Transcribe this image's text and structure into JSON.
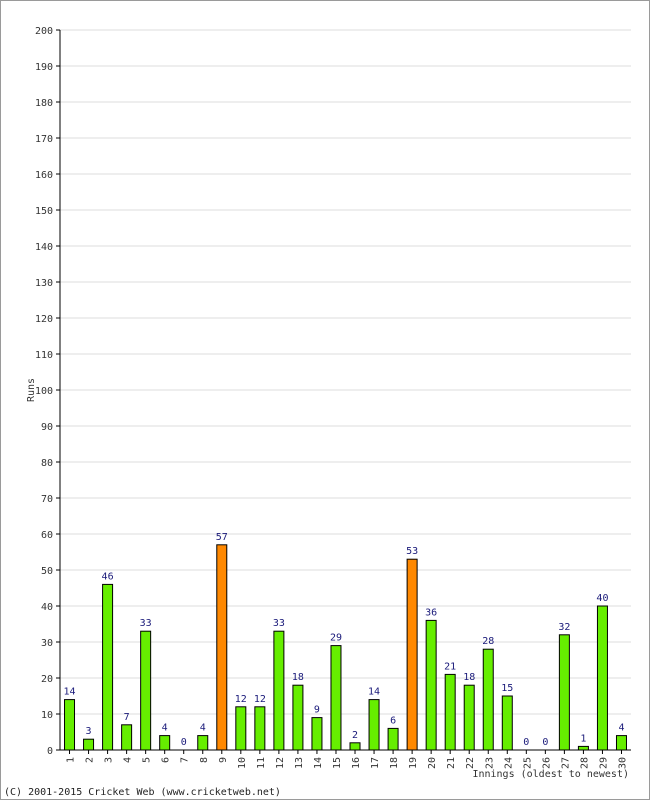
{
  "chart_data": {
    "type": "bar",
    "title": "",
    "xlabel": "Innings (oldest to newest)",
    "ylabel": "Runs",
    "ylim": [
      0,
      200
    ],
    "ytick_step": 10,
    "grid": true,
    "categories": [
      "1",
      "2",
      "3",
      "4",
      "5",
      "6",
      "7",
      "8",
      "9",
      "10",
      "11",
      "12",
      "13",
      "14",
      "15",
      "16",
      "17",
      "18",
      "19",
      "20",
      "21",
      "22",
      "23",
      "24",
      "25",
      "26",
      "27",
      "28",
      "29",
      "30"
    ],
    "values": [
      14,
      3,
      46,
      7,
      33,
      4,
      0,
      4,
      57,
      12,
      12,
      33,
      18,
      9,
      29,
      2,
      14,
      6,
      53,
      36,
      21,
      18,
      28,
      15,
      0,
      0,
      32,
      1,
      40,
      4
    ],
    "highlight": [
      false,
      false,
      false,
      false,
      false,
      false,
      false,
      false,
      true,
      false,
      false,
      false,
      false,
      false,
      false,
      false,
      false,
      false,
      true,
      false,
      false,
      false,
      false,
      false,
      false,
      false,
      false,
      false,
      false,
      false
    ],
    "colors": {
      "normal": "#66ee00",
      "highlight": "#ff8800",
      "bar_stroke": "#000000",
      "grid": "#dddddd",
      "value_label": "#1a1a7a"
    }
  },
  "footer": "(C) 2001-2015 Cricket Web (www.cricketweb.net)"
}
